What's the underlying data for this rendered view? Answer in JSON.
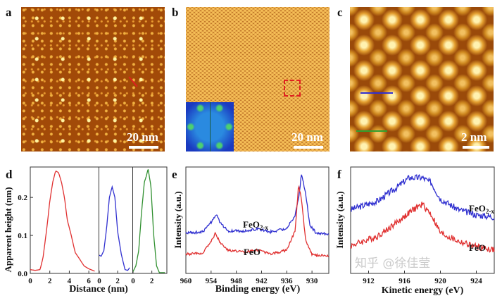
{
  "panels": {
    "a": {
      "label": "a",
      "scale": "20 nm"
    },
    "b": {
      "label": "b",
      "scale": "20 nm"
    },
    "c": {
      "label": "c",
      "scale": "2 nm"
    },
    "d": {
      "label": "d"
    },
    "e": {
      "label": "e"
    },
    "f": {
      "label": "f"
    }
  },
  "colors": {
    "red": "#e03030",
    "blue": "#3030d0",
    "green": "#309030",
    "stm": "#a24a08"
  },
  "watermark": "知乎 @徐佳莹",
  "chart_data": [
    {
      "type": "line",
      "panel": "d",
      "ylabel": "Apparent height (nm)",
      "xlabel": "Distance (nm)",
      "ylim": [
        0,
        0.28
      ],
      "yticks": [
        "0.0",
        "0.1",
        "0.2"
      ],
      "subplots": [
        {
          "color": "#e03030",
          "xlim": [
            0,
            7
          ],
          "xticks": [
            "0",
            "2",
            "4",
            "6"
          ],
          "x": [
            0,
            0.5,
            1.0,
            1.3,
            1.7,
            2.0,
            2.3,
            2.6,
            2.9,
            3.2,
            3.5,
            3.8,
            4.2,
            4.6,
            5.0,
            5.5,
            6.0,
            6.6
          ],
          "y": [
            0.01,
            0.008,
            0.01,
            0.04,
            0.12,
            0.19,
            0.24,
            0.27,
            0.265,
            0.24,
            0.2,
            0.14,
            0.1,
            0.055,
            0.04,
            0.02,
            0.012,
            0.006
          ]
        },
        {
          "color": "#3030d0",
          "xlim": [
            0,
            3.6
          ],
          "xticks": [
            "0",
            "2"
          ],
          "x": [
            0,
            0.2,
            0.5,
            0.8,
            1.1,
            1.4,
            1.7,
            2.0,
            2.4,
            2.8,
            3.1,
            3.3
          ],
          "y": [
            0.048,
            0.045,
            0.06,
            0.12,
            0.2,
            0.228,
            0.2,
            0.11,
            0.05,
            0.01,
            0.008,
            0.015
          ]
        },
        {
          "color": "#309030",
          "xlim": [
            0,
            3.6
          ],
          "xticks": [
            "0",
            "2"
          ],
          "x": [
            0,
            0.3,
            0.6,
            0.9,
            1.2,
            1.4,
            1.6,
            1.9,
            2.2,
            2.5,
            2.8,
            3.4
          ],
          "y": [
            0.005,
            0.02,
            0.06,
            0.16,
            0.24,
            0.255,
            0.275,
            0.23,
            0.1,
            0.02,
            0.002,
            0.002
          ]
        }
      ]
    },
    {
      "type": "line",
      "panel": "e",
      "ylabel": "Intensity (a.u.)",
      "xlabel": "Binding energy (eV)",
      "xlim": [
        960,
        926
      ],
      "xticks": [
        "960",
        "954",
        "948",
        "942",
        "936",
        "930"
      ],
      "series": [
        {
          "name": "FeO2-x",
          "color": "#3030d0",
          "x": [
            960,
            956,
            954,
            952.6,
            952,
            950,
            946,
            943,
            940,
            936,
            934,
            933,
            932.5,
            931.5,
            930.5,
            929,
            926
          ],
          "y": [
            0.38,
            0.39,
            0.48,
            0.55,
            0.48,
            0.4,
            0.4,
            0.42,
            0.39,
            0.42,
            0.55,
            0.75,
            0.94,
            0.75,
            0.45,
            0.38,
            0.37
          ]
        },
        {
          "name": "FeO",
          "color": "#e03030",
          "x": [
            960,
            956,
            954,
            953,
            952,
            950,
            946,
            943,
            940,
            936,
            934,
            933.2,
            932.5,
            931.5,
            930,
            926
          ],
          "y": [
            0.18,
            0.19,
            0.3,
            0.38,
            0.3,
            0.22,
            0.2,
            0.22,
            0.18,
            0.22,
            0.4,
            0.83,
            0.7,
            0.3,
            0.18,
            0.16
          ]
        }
      ]
    },
    {
      "type": "line",
      "panel": "f",
      "ylabel": "Intensity (a.u.)",
      "xlabel": "Kinetic energy (eV)",
      "xlim": [
        910,
        926
      ],
      "xticks": [
        "912",
        "916",
        "920",
        "924"
      ],
      "series": [
        {
          "name": "FeO2-x",
          "color": "#3030d0",
          "x": [
            910,
            913,
            915,
            916.5,
            918,
            919,
            920,
            922,
            924,
            926
          ],
          "y": [
            0.6,
            0.68,
            0.8,
            0.9,
            0.9,
            0.85,
            0.7,
            0.6,
            0.55,
            0.53
          ]
        },
        {
          "name": "FeO",
          "color": "#e03030",
          "x": [
            910,
            913,
            915,
            917,
            918,
            919,
            920,
            922,
            924,
            926
          ],
          "y": [
            0.26,
            0.35,
            0.47,
            0.6,
            0.65,
            0.55,
            0.38,
            0.3,
            0.25,
            0.22
          ]
        }
      ]
    }
  ]
}
